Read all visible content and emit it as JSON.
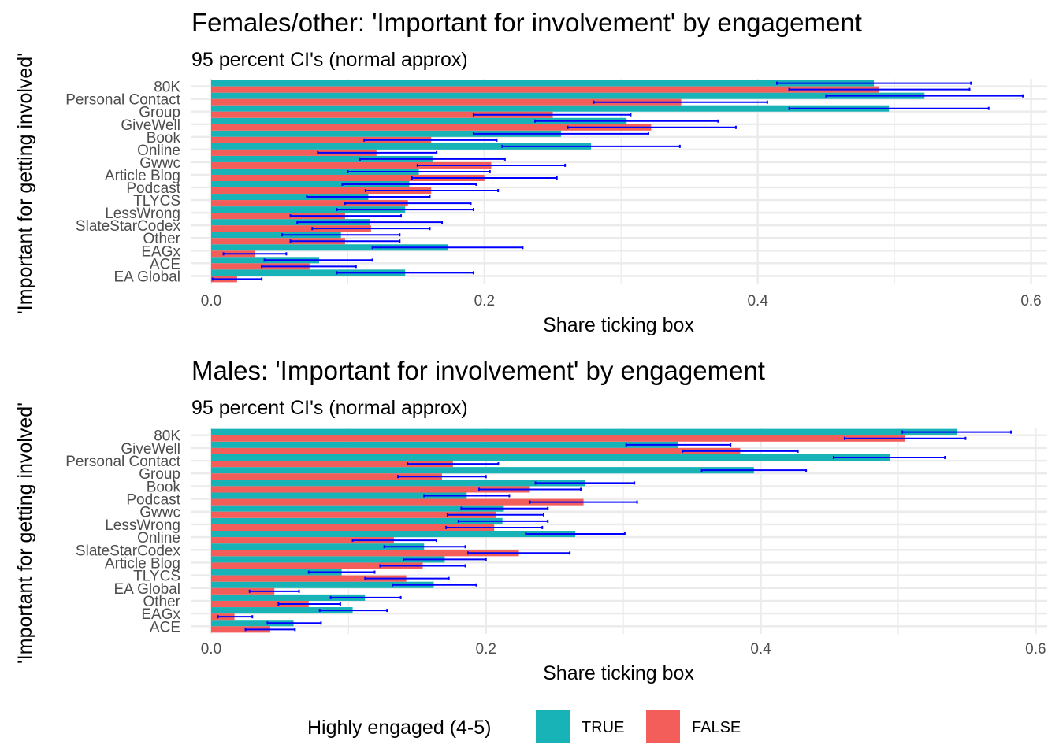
{
  "chart_data": [
    {
      "type": "bar",
      "title": "Females/other: 'Important for involvement' by engagement",
      "subtitle": "95 percent CI's (normal approx)",
      "xlabel": "Share ticking box",
      "ylabel": "'Important for getting involved'",
      "xlim": [
        -0.0144,
        0.6118
      ],
      "xticks": [
        0.0,
        0.2,
        0.4,
        0.6
      ],
      "xtick_labels": [
        "0.0",
        "0.2",
        "0.4",
        "0.6"
      ],
      "grid": true,
      "categories": [
        "80K",
        "Personal Contact",
        "Group",
        "GiveWell",
        "Book",
        "Online",
        "Gwwc",
        "Article Blog",
        "Podcast",
        "TLYCS",
        "LessWrong",
        "SlateStarCodex",
        "Other",
        "EAGx",
        "ACE",
        "EA Global"
      ],
      "series": [
        {
          "name": "TRUE",
          "color": "#17B3B7",
          "values": [
            0.485,
            0.522,
            0.496,
            0.304,
            0.256,
            0.278,
            0.162,
            0.152,
            0.145,
            0.115,
            0.142,
            0.116,
            0.095,
            0.173,
            0.079,
            0.142
          ],
          "ci_low": [
            0.414,
            0.45,
            0.423,
            0.237,
            0.192,
            0.213,
            0.109,
            0.1,
            0.096,
            0.07,
            0.092,
            0.063,
            0.052,
            0.118,
            0.039,
            0.092
          ],
          "ci_high": [
            0.556,
            0.594,
            0.569,
            0.371,
            0.32,
            0.343,
            0.215,
            0.204,
            0.194,
            0.16,
            0.192,
            0.169,
            0.138,
            0.228,
            0.118,
            0.192
          ]
        },
        {
          "name": "FALSE",
          "color": "#F35E5A",
          "values": [
            0.489,
            0.344,
            0.25,
            0.322,
            0.161,
            0.121,
            0.205,
            0.2,
            0.161,
            0.144,
            0.098,
            0.117,
            0.098,
            0.032,
            0.072,
            0.019
          ],
          "ci_low": [
            0.423,
            0.28,
            0.192,
            0.261,
            0.112,
            0.078,
            0.151,
            0.147,
            0.113,
            0.098,
            0.058,
            0.074,
            0.058,
            0.009,
            0.037,
            0.001
          ],
          "ci_high": [
            0.555,
            0.407,
            0.307,
            0.384,
            0.209,
            0.165,
            0.259,
            0.253,
            0.21,
            0.19,
            0.139,
            0.16,
            0.138,
            0.055,
            0.106,
            0.037
          ]
        }
      ]
    },
    {
      "type": "bar",
      "title": "Males: 'Important for involvement' by engagement",
      "subtitle": "95 percent CI's (normal approx)",
      "xlabel": "Share ticking box",
      "ylabel": "'Important for getting involved'",
      "xlim": [
        -0.0143,
        0.6084
      ],
      "xticks": [
        0.0,
        0.2,
        0.4,
        0.6
      ],
      "xtick_labels": [
        "0.0",
        "0.2",
        "0.4",
        "0.6"
      ],
      "grid": true,
      "categories": [
        "80K",
        "GiveWell",
        "Personal Contact",
        "Group",
        "Book",
        "Podcast",
        "Gwwc",
        "LessWrong",
        "Online",
        "SlateStarCodex",
        "Article Blog",
        "TLYCS",
        "EA Global",
        "Other",
        "EAGx",
        "ACE"
      ],
      "series": [
        {
          "name": "TRUE",
          "color": "#17B3B7",
          "values": [
            0.543,
            0.34,
            0.494,
            0.395,
            0.272,
            0.186,
            0.213,
            0.212,
            0.265,
            0.155,
            0.17,
            0.095,
            0.162,
            0.112,
            0.103,
            0.06
          ],
          "ci_low": [
            0.503,
            0.302,
            0.453,
            0.357,
            0.236,
            0.155,
            0.182,
            0.18,
            0.229,
            0.126,
            0.14,
            0.071,
            0.132,
            0.087,
            0.079,
            0.041
          ],
          "ci_high": [
            0.582,
            0.378,
            0.534,
            0.433,
            0.308,
            0.217,
            0.245,
            0.245,
            0.301,
            0.185,
            0.2,
            0.119,
            0.193,
            0.138,
            0.128,
            0.08
          ]
        },
        {
          "name": "FALSE",
          "color": "#F35E5A",
          "values": [
            0.505,
            0.385,
            0.176,
            0.168,
            0.232,
            0.271,
            0.207,
            0.206,
            0.133,
            0.224,
            0.154,
            0.142,
            0.046,
            0.071,
            0.017,
            0.043
          ],
          "ci_low": [
            0.461,
            0.343,
            0.143,
            0.136,
            0.195,
            0.232,
            0.172,
            0.171,
            0.103,
            0.187,
            0.123,
            0.112,
            0.028,
            0.049,
            0.005,
            0.025
          ],
          "ci_high": [
            0.549,
            0.427,
            0.209,
            0.2,
            0.269,
            0.31,
            0.242,
            0.241,
            0.164,
            0.261,
            0.185,
            0.173,
            0.064,
            0.094,
            0.03,
            0.061
          ]
        }
      ]
    }
  ],
  "legend": {
    "title": "Highly engaged (4-5)",
    "items": [
      {
        "label": "TRUE",
        "color": "#17B3B7"
      },
      {
        "label": "FALSE",
        "color": "#F35E5A"
      }
    ]
  }
}
